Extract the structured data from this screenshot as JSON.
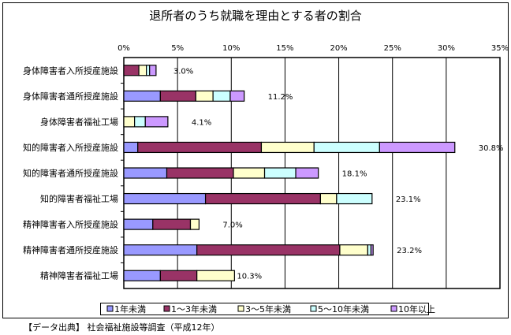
{
  "chart_data": {
    "type": "bar",
    "orientation": "horizontal",
    "stacked": true,
    "title": "退所者のうち就職を理由とする者の割合",
    "xlabel": "",
    "ylabel": "",
    "xlim": [
      0,
      35
    ],
    "x_ticks": [
      "0%",
      "5%",
      "10%",
      "15%",
      "20%",
      "25%",
      "30%",
      "35%"
    ],
    "grid": true,
    "legend_position": "bottom",
    "categories": [
      "身体障害者入所授産施設",
      "身体障害者通所授産施設",
      "身体障害者福祉工場",
      "知的障害者入所授産施設",
      "知的障害者通所授産施設",
      "知的障害者福祉工場",
      "精神障害者入所授産施設",
      "精神障害者通所授産施設",
      "精神障害者福祉工場"
    ],
    "series": [
      {
        "name": "1年未満",
        "color": "#9999FF",
        "values": [
          0,
          3.4,
          0,
          1.3,
          4.0,
          7.6,
          2.7,
          6.8,
          3.4
        ]
      },
      {
        "name": "1～3年未満",
        "color": "#993366",
        "values": [
          1.4,
          3.3,
          0,
          11.5,
          6.2,
          10.7,
          3.5,
          13.3,
          3.4
        ]
      },
      {
        "name": "3～5年未満",
        "color": "#FFFFCC",
        "values": [
          0.7,
          1.6,
          1.0,
          4.9,
          2.9,
          1.5,
          0.8,
          2.6,
          3.5
        ]
      },
      {
        "name": "5～10年未満",
        "color": "#CCFFFF",
        "values": [
          0.3,
          1.6,
          1.0,
          6.1,
          2.9,
          3.3,
          0,
          0.3,
          0
        ]
      },
      {
        "name": "10年以上",
        "color": "#CC99FF",
        "values": [
          0.6,
          1.3,
          2.1,
          7.0,
          2.1,
          0,
          0,
          0.2,
          0
        ]
      }
    ],
    "totals": [
      3.0,
      11.2,
      4.1,
      30.8,
      18.1,
      23.1,
      7.0,
      23.2,
      10.3
    ],
    "total_labels": [
      "3.0%",
      "11.2%",
      "4.1%",
      "30.8%",
      "18.1%",
      "23.1%",
      "7.0%",
      "23.2%",
      "10.3%"
    ]
  },
  "footnote": "【データ出典】 社会福祉施設等調査（平成12年）"
}
